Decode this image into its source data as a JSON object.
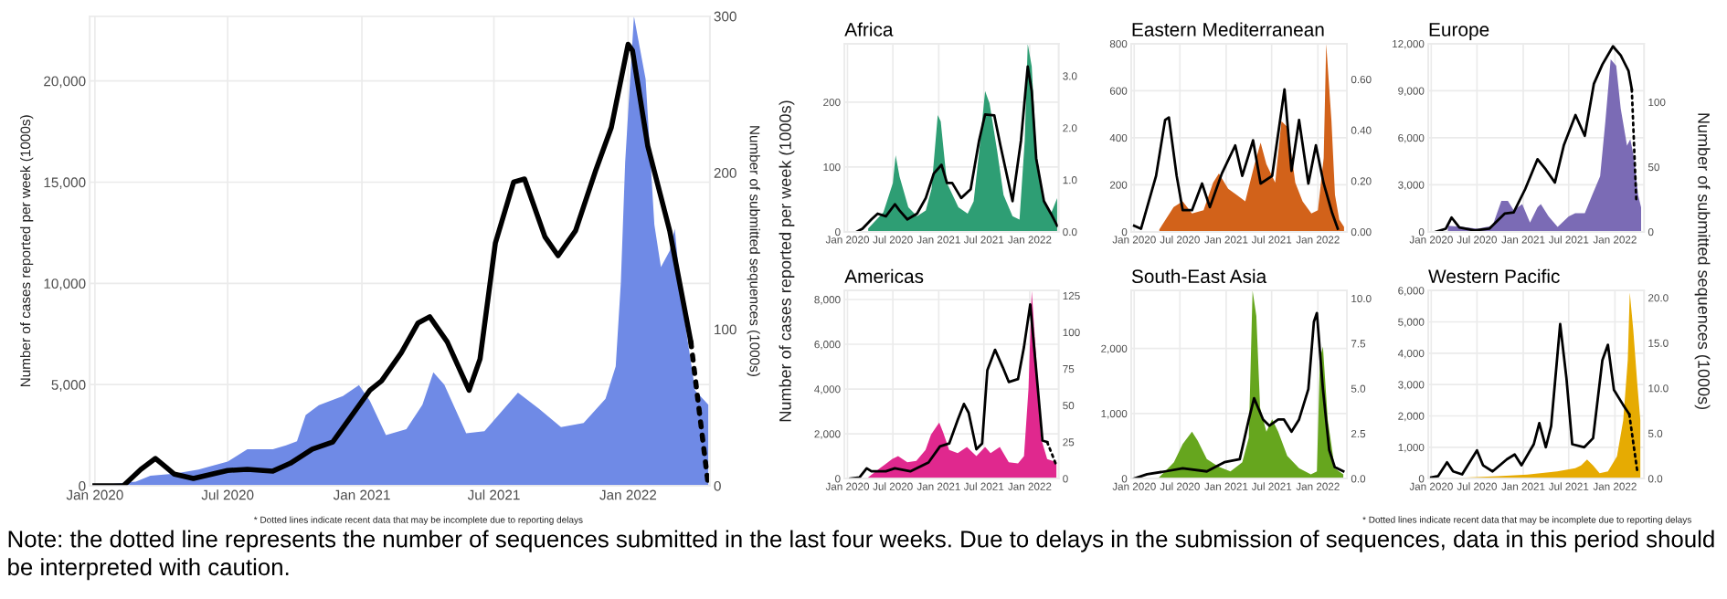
{
  "chart_data": [
    {
      "type": "area",
      "ylabel": "Number of cases reported per week (1000s)",
      "y2label": "Number of submitted sequences (1000s)",
      "grid": true,
      "xlim": [
        "2019-12-25",
        "2022-04-23"
      ],
      "xticks": [
        {
          "value": "2020-01-01",
          "label": "Jan 2020"
        },
        {
          "value": "2020-07-01",
          "label": "Jul 2020"
        },
        {
          "value": "2021-01-01",
          "label": "Jan 2021"
        },
        {
          "value": "2021-07-01",
          "label": "Jul 2021"
        },
        {
          "value": "2022-01-01",
          "label": "Jan 2022"
        }
      ],
      "ylim": [
        0,
        23200
      ],
      "yticks": [
        0,
        {
          "value": 5000,
          "label": "5,000"
        },
        {
          "value": 10000,
          "label": "10,000"
        },
        {
          "value": 15000,
          "label": "15,000"
        },
        {
          "value": 20000,
          "label": "20,000"
        }
      ],
      "y2lim": [
        0,
        300
      ],
      "y2ticks": [
        0,
        100,
        200,
        300
      ],
      "series": [
        {
          "type": "area",
          "color": "#6f8ae6",
          "x": [
            "2020-01-01",
            "2020-02-26",
            "2020-03-17",
            "2020-04-19",
            "2020-05-22",
            "2020-07-01",
            "2020-07-28",
            "2020-09-01",
            "2020-09-19",
            "2020-10-04",
            "2020-10-16",
            "2020-11-03",
            "2020-12-06",
            "2020-12-28",
            "2021-01-12",
            "2021-02-03",
            "2021-03-03",
            "2021-03-25",
            "2021-04-09",
            "2021-04-24",
            "2021-05-24",
            "2021-06-18",
            "2021-08-03",
            "2021-09-01",
            "2021-10-01",
            "2021-11-01",
            "2021-12-01",
            "2021-12-15",
            "2021-12-22",
            "2021-12-28",
            "2022-01-09",
            "2022-01-25",
            "2022-02-06",
            "2022-02-15",
            "2022-02-27",
            "2022-03-06",
            "2022-03-15",
            "2022-04-03",
            "2022-04-21"
          ],
          "values": [
            0,
            200,
            500,
            600,
            800,
            1200,
            1800,
            1800,
            2000,
            2200,
            3500,
            3980,
            4430,
            4970,
            4200,
            2500,
            2800,
            4000,
            5600,
            5000,
            2600,
            2700,
            4600,
            3800,
            2900,
            3100,
            4300,
            5900,
            10000,
            16000,
            23200,
            20100,
            12900,
            10800,
            11600,
            12700,
            9250,
            4700,
            4000
          ]
        },
        {
          "type": "line",
          "axis": "y2",
          "color": "#000000",
          "x": [
            "2020-01-01",
            "2020-02-09",
            "2020-03-04",
            "2020-03-24",
            "2020-04-19",
            "2020-05-15",
            "2020-07-01",
            "2020-07-28",
            "2020-09-01",
            "2020-09-25",
            "2020-10-25",
            "2020-11-22",
            "2021-01-12",
            "2021-01-28",
            "2021-02-24",
            "2021-03-19",
            "2021-04-04",
            "2021-04-28",
            "2021-05-28",
            "2021-06-12",
            "2021-07-03",
            "2021-07-28",
            "2021-08-12",
            "2021-09-09",
            "2021-09-27",
            "2021-10-21",
            "2021-11-18",
            "2021-12-09",
            "2022-01-01",
            "2022-01-07",
            "2022-01-28",
            "2022-02-27",
            "2022-03-28"
          ],
          "values": [
            0,
            0,
            10.5,
            17.5,
            7.4,
            4.7,
            9.8,
            10.5,
            9.4,
            14.4,
            23.4,
            28,
            61,
            67,
            85,
            104,
            108,
            92,
            61,
            81,
            155,
            194,
            196,
            159,
            147,
            163,
            202,
            229,
            282,
            278,
            217,
            163,
            92
          ]
        },
        {
          "type": "line",
          "axis": "y2",
          "line_style": "dotted",
          "color": "#000000",
          "x": [
            "2022-03-28",
            "2022-04-21"
          ],
          "values": [
            92,
            0
          ]
        }
      ],
      "annotations": [
        "* Dotted lines indicate recent data that may be incomplete due to reporting delays",
        "Note: the dotted line represents the number of sequences submitted in the last four weeks. Due to delays in the submission of sequences, data in this period should be interpreted with caution."
      ]
    },
    {
      "type": "area",
      "title": "Africa",
      "grid": true,
      "xlim": [
        "2019-12-20",
        "2022-04-27"
      ],
      "xticks": [
        {
          "value": "2020-01-01",
          "label": "Jan 2020"
        },
        {
          "value": "2020-07-01",
          "label": "Jul 2020"
        },
        {
          "value": "2021-01-01",
          "label": "Jan 2021"
        },
        {
          "value": "2021-07-01",
          "label": "Jul 2021"
        },
        {
          "value": "2022-01-01",
          "label": "Jan 2022"
        }
      ],
      "ylim": [
        0,
        290
      ],
      "yticks": [
        0,
        100,
        200
      ],
      "y2lim": [
        0,
        3.62
      ],
      "y2ticks": [
        {
          "value": 0,
          "label": "0.0"
        },
        {
          "value": 1,
          "label": "1.0"
        },
        {
          "value": 2,
          "label": "2.0"
        },
        {
          "value": 3,
          "label": "3.0"
        }
      ],
      "series": [
        {
          "type": "area",
          "color": "#2e9e74",
          "x": [
            "2020-03-24",
            "2020-05-24",
            "2020-07-01",
            "2020-07-12",
            "2020-07-28",
            "2020-09-01",
            "2020-10-06",
            "2020-11-10",
            "2020-12-03",
            "2020-12-28",
            "2021-01-09",
            "2021-02-03",
            "2021-03-21",
            "2021-04-27",
            "2021-05-21",
            "2021-06-12",
            "2021-07-06",
            "2021-07-24",
            "2021-08-24",
            "2021-09-18",
            "2021-10-24",
            "2021-11-21",
            "2021-12-12",
            "2021-12-24",
            "2022-01-09",
            "2022-01-27",
            "2022-02-27",
            "2022-03-27",
            "2022-04-21"
          ],
          "values": [
            5,
            30,
            75,
            118,
            85,
            38,
            24,
            33,
            66,
            180,
            170,
            75,
            38,
            28,
            47,
            123,
            217,
            198,
            123,
            57,
            24,
            19,
            141,
            290,
            255,
            123,
            47,
            28,
            52
          ]
        },
        {
          "type": "line",
          "axis": "y2",
          "color": "#000000",
          "x": [
            "2020-02-06",
            "2020-03-01",
            "2020-04-06",
            "2020-05-01",
            "2020-06-03",
            "2020-07-09",
            "2020-07-28",
            "2020-08-28",
            "2020-10-06",
            "2020-11-10",
            "2020-12-12",
            "2021-01-12",
            "2021-02-03",
            "2021-02-24",
            "2021-04-01",
            "2021-05-09",
            "2021-06-12",
            "2021-07-06",
            "2021-08-12",
            "2021-09-06",
            "2021-10-24",
            "2021-11-27",
            "2021-12-24",
            "2022-01-09",
            "2022-01-27",
            "2022-02-27",
            "2022-03-27",
            "2022-04-21"
          ],
          "values": [
            0,
            0.06,
            0.24,
            0.35,
            0.3,
            0.53,
            0.41,
            0.24,
            0.35,
            0.65,
            1.12,
            1.29,
            0.94,
            0.94,
            0.65,
            0.82,
            1.76,
            2.26,
            2.24,
            1.65,
            0.59,
            1.76,
            3.18,
            2.71,
            1.41,
            0.59,
            0.35,
            0.12
          ]
        }
      ]
    },
    {
      "type": "area",
      "title": "Eastern Mediterranean",
      "grid": true,
      "xlim": [
        "2019-12-20",
        "2022-04-27"
      ],
      "xticks": [
        {
          "value": "2020-01-01",
          "label": "Jan 2020"
        },
        {
          "value": "2020-07-01",
          "label": "Jul 2020"
        },
        {
          "value": "2021-01-01",
          "label": "Jan 2021"
        },
        {
          "value": "2021-07-01",
          "label": "Jul 2021"
        },
        {
          "value": "2022-01-01",
          "label": "Jan 2022"
        }
      ],
      "ylim": [
        0,
        800
      ],
      "yticks": [
        0,
        200,
        400,
        600,
        800
      ],
      "y2lim": [
        0,
        0.74
      ],
      "y2ticks": [
        {
          "value": 0,
          "label": "0.00"
        },
        {
          "value": 0.2,
          "label": "0.20"
        },
        {
          "value": 0.4,
          "label": "0.40"
        },
        {
          "value": 0.6,
          "label": "0.60"
        }
      ],
      "series": [
        {
          "type": "area",
          "color": "#d2621a",
          "x": [
            "2020-04-10",
            "2020-06-06",
            "2020-07-12",
            "2020-08-18",
            "2020-10-03",
            "2020-11-10",
            "2020-12-03",
            "2021-01-09",
            "2021-02-12",
            "2021-03-18",
            "2021-04-24",
            "2021-05-18",
            "2021-06-10",
            "2021-07-15",
            "2021-08-09",
            "2021-09-03",
            "2021-10-03",
            "2021-11-01",
            "2021-12-06",
            "2022-01-01",
            "2022-01-24",
            "2022-02-03",
            "2022-02-24",
            "2022-03-10",
            "2022-03-27",
            "2022-04-15"
          ],
          "values": [
            10,
            105,
            130,
            78,
            92,
            209,
            248,
            183,
            157,
            130,
            288,
            379,
            288,
            209,
            470,
            444,
            209,
            130,
            78,
            92,
            314,
            800,
            470,
            157,
            52,
            21
          ]
        },
        {
          "type": "line",
          "axis": "y2",
          "color": "#000000",
          "x": [
            "2020-01-01",
            "2020-01-28",
            "2020-03-28",
            "2020-05-03",
            "2020-05-18",
            "2020-06-18",
            "2020-07-12",
            "2020-08-18",
            "2020-09-27",
            "2020-10-28",
            "2020-12-15",
            "2021-02-06",
            "2021-03-06",
            "2021-04-18",
            "2021-05-18",
            "2021-07-03",
            "2021-08-21",
            "2021-09-18",
            "2021-10-18",
            "2021-11-24",
            "2021-12-24",
            "2022-01-24",
            "2022-02-27",
            "2022-03-21"
          ],
          "values": [
            0.024,
            0.012,
            0.22,
            0.44,
            0.45,
            0.22,
            0.085,
            0.085,
            0.19,
            0.097,
            0.23,
            0.34,
            0.22,
            0.36,
            0.19,
            0.22,
            0.56,
            0.24,
            0.44,
            0.19,
            0.34,
            0.19,
            0.073,
            0.012
          ]
        }
      ]
    },
    {
      "type": "area",
      "title": "Europe",
      "grid": true,
      "xlim": [
        "2019-12-20",
        "2022-04-27"
      ],
      "xticks": [
        {
          "value": "2020-01-01",
          "label": "Jan 2020"
        },
        {
          "value": "2020-07-01",
          "label": "Jul 2020"
        },
        {
          "value": "2021-01-01",
          "label": "Jan 2021"
        },
        {
          "value": "2021-07-01",
          "label": "Jul 2021"
        },
        {
          "value": "2022-01-01",
          "label": "Jan 2022"
        }
      ],
      "ylim": [
        0,
        12000
      ],
      "yticks": [
        0,
        {
          "value": 3000,
          "label": "3,000"
        },
        {
          "value": 6000,
          "label": "6,000"
        },
        {
          "value": 9000,
          "label": "9,000"
        },
        {
          "value": 12000,
          "label": "12,000"
        }
      ],
      "y2lim": [
        0,
        145
      ],
      "y2ticks": [
        0,
        50,
        100
      ],
      "series": [
        {
          "type": "area",
          "color": "#7b6bb5",
          "x": [
            "2020-03-07",
            "2020-05-04",
            "2020-07-03",
            "2020-09-01",
            "2020-10-06",
            "2020-11-01",
            "2020-11-24",
            "2020-12-28",
            "2021-01-28",
            "2021-02-27",
            "2021-03-12",
            "2021-04-12",
            "2021-05-18",
            "2021-07-01",
            "2021-07-27",
            "2021-09-03",
            "2021-10-03",
            "2021-11-03",
            "2021-11-24",
            "2021-12-15",
            "2022-01-06",
            "2022-01-24",
            "2022-02-18",
            "2022-03-03",
            "2022-03-18",
            "2022-04-03",
            "2022-04-15"
          ],
          "values": [
            390,
            310,
            200,
            390,
            1970,
            1970,
            1380,
            1770,
            590,
            1570,
            1770,
            980,
            310,
            980,
            1180,
            1180,
            2360,
            3540,
            7070,
            11000,
            10600,
            7860,
            5500,
            5900,
            4720,
            2360,
            1570
          ]
        },
        {
          "type": "line",
          "axis": "y2",
          "color": "#000000",
          "x": [
            "2020-01-19",
            "2020-02-28",
            "2020-03-22",
            "2020-04-22",
            "2020-06-22",
            "2020-08-19",
            "2020-10-19",
            "2020-11-24",
            "2021-01-09",
            "2021-02-27",
            "2021-04-01",
            "2021-05-07",
            "2021-06-12",
            "2021-07-28",
            "2021-09-03",
            "2021-10-09",
            "2021-11-12",
            "2021-12-24",
            "2022-01-24",
            "2022-02-24",
            "2022-03-09"
          ],
          "values": [
            0,
            2.4,
            11,
            3.3,
            1,
            2.4,
            14,
            15,
            33,
            56,
            48,
            38,
            67,
            90,
            74,
            114,
            129,
            143,
            136,
            124,
            110
          ]
        },
        {
          "type": "line",
          "axis": "y2",
          "line_style": "dotted",
          "color": "#000000",
          "x": [
            "2022-03-09",
            "2022-03-27"
          ],
          "values": [
            110,
            24
          ]
        }
      ]
    },
    {
      "type": "area",
      "title": "Americas",
      "ylabel": "Number of cases reported per week (1000s)",
      "grid": true,
      "xlim": [
        "2019-12-20",
        "2022-04-27"
      ],
      "xticks": [
        {
          "value": "2020-01-01",
          "label": "Jan 2020"
        },
        {
          "value": "2020-07-01",
          "label": "Jul 2020"
        },
        {
          "value": "2021-01-01",
          "label": "Jan 2021"
        },
        {
          "value": "2021-07-01",
          "label": "Jul 2021"
        },
        {
          "value": "2022-01-01",
          "label": "Jan 2022"
        }
      ],
      "ylim": [
        0,
        8400
      ],
      "yticks": [
        0,
        {
          "value": 2000,
          "label": "2,000"
        },
        {
          "value": 4000,
          "label": "4,000"
        },
        {
          "value": 6000,
          "label": "6,000"
        },
        {
          "value": 8000,
          "label": "8,000"
        }
      ],
      "y2lim": [
        0,
        128.5
      ],
      "y2ticks": [
        0,
        25,
        50,
        75,
        100,
        125
      ],
      "series": [
        {
          "type": "area",
          "color": "#e0288e",
          "x": [
            "2020-03-24",
            "2020-05-10",
            "2020-06-28",
            "2020-07-22",
            "2020-08-28",
            "2020-10-03",
            "2020-11-09",
            "2020-12-01",
            "2021-01-03",
            "2021-01-18",
            "2021-02-12",
            "2021-03-18",
            "2021-04-24",
            "2021-06-01",
            "2021-07-06",
            "2021-07-28",
            "2021-09-03",
            "2021-10-09",
            "2021-11-15",
            "2021-12-09",
            "2021-12-27",
            "2022-01-09",
            "2022-01-27",
            "2022-02-15",
            "2022-03-12",
            "2022-04-18"
          ],
          "values": [
            54,
            460,
            870,
            1010,
            730,
            790,
            1280,
            1960,
            2500,
            2090,
            1280,
            1140,
            1410,
            1010,
            1410,
            1140,
            1410,
            730,
            680,
            1010,
            4000,
            8400,
            5360,
            1820,
            870,
            730
          ]
        },
        {
          "type": "line",
          "axis": "y2",
          "color": "#000000",
          "x": [
            "2020-01-12",
            "2020-02-18",
            "2020-03-18",
            "2020-04-06",
            "2020-06-03",
            "2020-07-09",
            "2020-09-09",
            "2020-11-21",
            "2021-01-06",
            "2021-02-12",
            "2021-03-18",
            "2021-04-12",
            "2021-05-01",
            "2021-06-01",
            "2021-06-24",
            "2021-07-15",
            "2021-08-15",
            "2021-09-15",
            "2021-10-09",
            "2021-11-15",
            "2021-12-09",
            "2022-01-03",
            "2022-01-27",
            "2022-02-21",
            "2022-03-12"
          ],
          "values": [
            0,
            0.8,
            7,
            5,
            5,
            7,
            5,
            11,
            22,
            24,
            40,
            51,
            45,
            20,
            24,
            74,
            88,
            76,
            66,
            68,
            90,
            119,
            74,
            26,
            25
          ]
        },
        {
          "type": "line",
          "axis": "y2",
          "line_style": "dotted",
          "color": "#000000",
          "x": [
            "2022-03-12",
            "2022-04-18"
          ],
          "values": [
            25,
            9
          ]
        }
      ]
    },
    {
      "type": "area",
      "title": "South-East Asia",
      "grid": true,
      "xlim": [
        "2019-12-20",
        "2022-04-27"
      ],
      "xticks": [
        {
          "value": "2020-01-01",
          "label": "Jan 2020"
        },
        {
          "value": "2020-07-01",
          "label": "Jul 2020"
        },
        {
          "value": "2021-01-01",
          "label": "Jan 2021"
        },
        {
          "value": "2021-07-01",
          "label": "Jul 2021"
        },
        {
          "value": "2022-01-01",
          "label": "Jan 2022"
        }
      ],
      "ylim": [
        0,
        2890
      ],
      "yticks": [
        0,
        {
          "value": 1000,
          "label": "1,000"
        },
        {
          "value": 2000,
          "label": "2,000"
        }
      ],
      "y2lim": [
        0,
        10.44
      ],
      "y2ticks": [
        {
          "value": 0,
          "label": "0.0"
        },
        {
          "value": 2.5,
          "label": "2.5"
        },
        {
          "value": 5,
          "label": "5.0"
        },
        {
          "value": 7.5,
          "label": "7.5"
        },
        {
          "value": 10,
          "label": "10.0"
        }
      ],
      "series": [
        {
          "type": "area",
          "color": "#66a61e",
          "x": [
            "2020-04-09",
            "2020-06-07",
            "2020-07-12",
            "2020-08-18",
            "2020-09-10",
            "2020-10-16",
            "2020-12-03",
            "2021-01-18",
            "2021-03-06",
            "2021-04-01",
            "2021-04-16",
            "2021-05-01",
            "2021-05-16",
            "2021-06-10",
            "2021-07-03",
            "2021-07-27",
            "2021-09-01",
            "2021-10-18",
            "2021-12-04",
            "2021-12-28",
            "2022-01-09",
            "2022-01-21",
            "2022-02-09",
            "2022-03-09",
            "2022-04-12"
          ],
          "values": [
            19,
            250,
            530,
            720,
            580,
            300,
            180,
            110,
            250,
            630,
            2890,
            2500,
            1090,
            720,
            910,
            720,
            350,
            160,
            65,
            110,
            1840,
            2030,
            910,
            160,
            65
          ]
        },
        {
          "type": "line",
          "axis": "y2",
          "color": "#000000",
          "x": [
            "2020-01-01",
            "2020-02-21",
            "2020-05-03",
            "2020-07-12",
            "2020-10-16",
            "2020-12-25",
            "2021-02-24",
            "2021-04-01",
            "2021-04-22",
            "2021-05-28",
            "2021-06-22",
            "2021-07-27",
            "2021-08-19",
            "2021-09-18",
            "2021-10-18",
            "2021-11-24",
            "2021-12-16",
            "2021-12-28",
            "2022-01-21",
            "2022-02-15",
            "2022-03-09",
            "2022-04-12"
          ],
          "values": [
            0,
            0.24,
            0.4,
            0.57,
            0.4,
            0.91,
            1.08,
            3.28,
            4.46,
            3.28,
            2.94,
            3.28,
            3.28,
            2.6,
            3.28,
            4.97,
            8.7,
            9.19,
            4.97,
            1.59,
            0.64,
            0.41
          ]
        }
      ]
    },
    {
      "type": "area",
      "title": "Western Pacific",
      "y2label": "Number of submitted sequences (1000s)",
      "grid": true,
      "xlim": [
        "2019-12-20",
        "2022-04-27"
      ],
      "xticks": [
        {
          "value": "2020-01-01",
          "label": "Jan 2020"
        },
        {
          "value": "2020-07-01",
          "label": "Jul 2020"
        },
        {
          "value": "2021-01-01",
          "label": "Jan 2021"
        },
        {
          "value": "2021-07-01",
          "label": "Jul 2021"
        },
        {
          "value": "2022-01-01",
          "label": "Jan 2022"
        }
      ],
      "ylim": [
        0,
        6000
      ],
      "yticks": [
        0,
        {
          "value": 1000,
          "label": "1,000"
        },
        {
          "value": 2000,
          "label": "2,000"
        },
        {
          "value": 3000,
          "label": "3,000"
        },
        {
          "value": 4000,
          "label": "4,000"
        },
        {
          "value": 5000,
          "label": "5,000"
        },
        {
          "value": 6000,
          "label": "6,000"
        }
      ],
      "y2lim": [
        0,
        20.8
      ],
      "y2ticks": [
        {
          "value": 0,
          "label": "0.0"
        },
        {
          "value": 5,
          "label": "5.0"
        },
        {
          "value": 10,
          "label": "10.0"
        },
        {
          "value": 15,
          "label": "15.0"
        },
        {
          "value": 20,
          "label": "20.0"
        }
      ],
      "series": [
        {
          "type": "area",
          "color": "#e6ab02",
          "x": [
            "2020-01-28",
            "2020-09-22",
            "2021-01-18",
            "2021-05-16",
            "2021-07-27",
            "2021-08-19",
            "2021-09-12",
            "2021-10-06",
            "2021-11-01",
            "2021-12-04",
            "2022-01-09",
            "2022-02-03",
            "2022-02-21",
            "2022-03-01",
            "2022-03-15",
            "2022-03-31",
            "2022-04-12"
          ],
          "values": [
            0,
            77,
            130,
            230,
            330,
            420,
            610,
            420,
            170,
            230,
            710,
            1860,
            3780,
            5940,
            4740,
            3010,
            1860
          ]
        },
        {
          "type": "line",
          "axis": "y2",
          "color": "#000000",
          "x": [
            "2020-01-01",
            "2020-01-28",
            "2020-03-04",
            "2020-03-28",
            "2020-05-03",
            "2020-07-01",
            "2020-07-25",
            "2020-09-01",
            "2020-10-28",
            "2020-11-28",
            "2020-12-25",
            "2021-02-12",
            "2021-03-06",
            "2021-04-01",
            "2021-04-22",
            "2021-05-28",
            "2021-06-22",
            "2021-07-15",
            "2021-09-01",
            "2021-10-06",
            "2021-11-12",
            "2021-12-04",
            "2021-12-28",
            "2022-02-03",
            "2022-02-27"
          ],
          "values": [
            0.13,
            0.27,
            1.8,
            0.8,
            0.47,
            3.13,
            1.47,
            0.8,
            2.13,
            2.67,
            1.47,
            3.8,
            6.13,
            3.47,
            5.8,
            17.1,
            11.1,
            3.8,
            3.47,
            4.47,
            13.1,
            14.8,
            9.8,
            8.13,
            7.13
          ]
        },
        {
          "type": "line",
          "axis": "y2",
          "line_style": "dotted",
          "color": "#000000",
          "x": [
            "2022-02-27",
            "2022-03-31"
          ],
          "values": [
            7.13,
            0.8
          ]
        }
      ],
      "annotations": [
        "* Dotted lines indicate recent data that may be incomplete due to reporting delays"
      ]
    }
  ]
}
